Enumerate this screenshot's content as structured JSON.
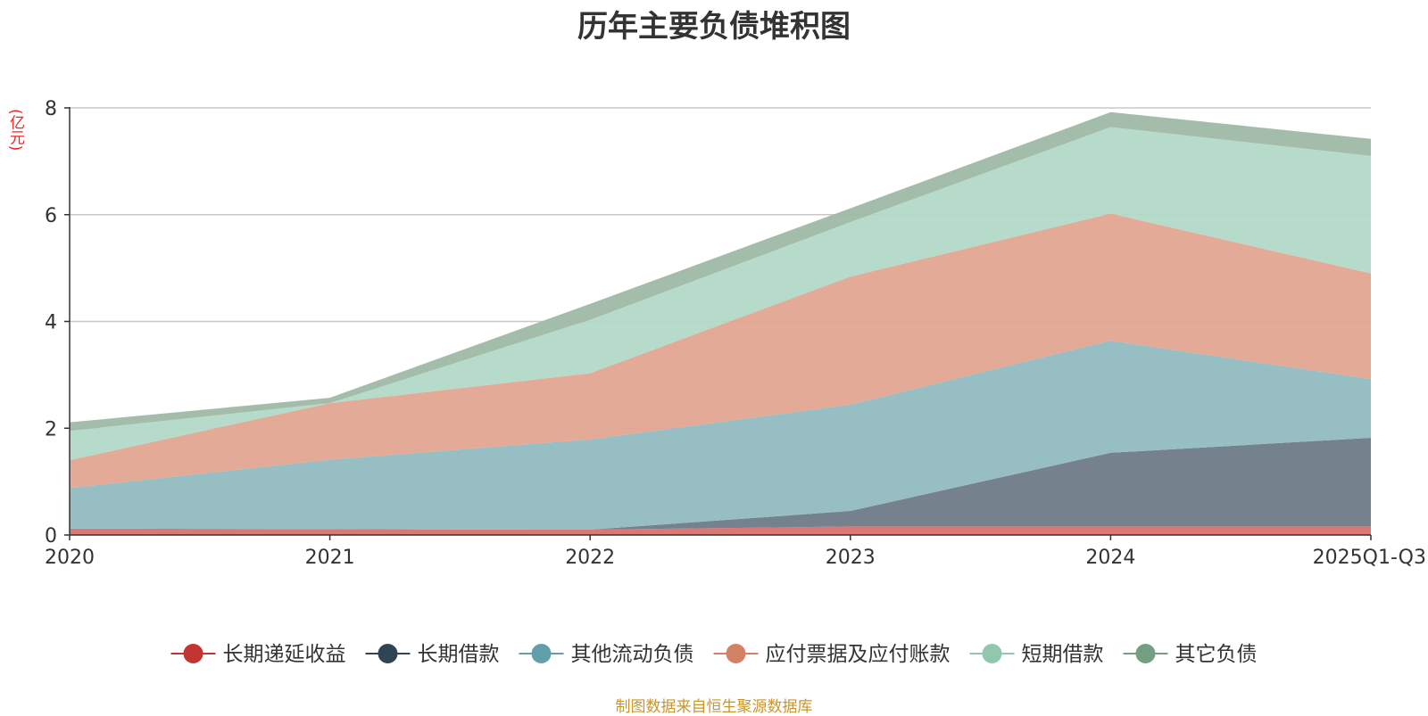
{
  "chart_data": {
    "type": "area",
    "stacked": true,
    "title": "历年主要负债堆积图",
    "unit_label": "(亿元)",
    "source_note": "制图数据来自恒生聚源数据库",
    "categories": [
      "2020",
      "2021",
      "2022",
      "2023",
      "2024",
      "2025Q1-Q3"
    ],
    "ylim": [
      0,
      8
    ],
    "yticks": [
      0,
      2,
      4,
      6,
      8
    ],
    "grid": true,
    "legend_position": "bottom",
    "series": [
      {
        "name": "长期递延收益",
        "color": "#c23531",
        "fill": "#d9716d",
        "values": [
          0.12,
          0.11,
          0.1,
          0.16,
          0.16,
          0.16
        ]
      },
      {
        "name": "长期借款",
        "color": "#2f4554",
        "fill": "#6e7a86",
        "values": [
          0.0,
          0.0,
          0.0,
          0.29,
          1.38,
          1.66
        ]
      },
      {
        "name": "其他流动负债",
        "color": "#61a0a8",
        "fill": "#91bac0",
        "values": [
          0.76,
          1.3,
          1.69,
          1.99,
          2.1,
          1.1
        ]
      },
      {
        "name": "应付票据及应付账款",
        "color": "#d48265",
        "fill": "#e0a591",
        "values": [
          0.52,
          1.06,
          1.24,
          2.4,
          2.38,
          1.98
        ]
      },
      {
        "name": "短期借款",
        "color": "#91c7ae",
        "fill": "#b2d9c7",
        "values": [
          0.55,
          0.0,
          1.0,
          1.02,
          1.62,
          2.2
        ]
      },
      {
        "name": "其它负债",
        "color": "#749f83",
        "fill": "#9fb9a7",
        "values": [
          0.16,
          0.1,
          0.3,
          0.26,
          0.28,
          0.32
        ]
      }
    ]
  }
}
